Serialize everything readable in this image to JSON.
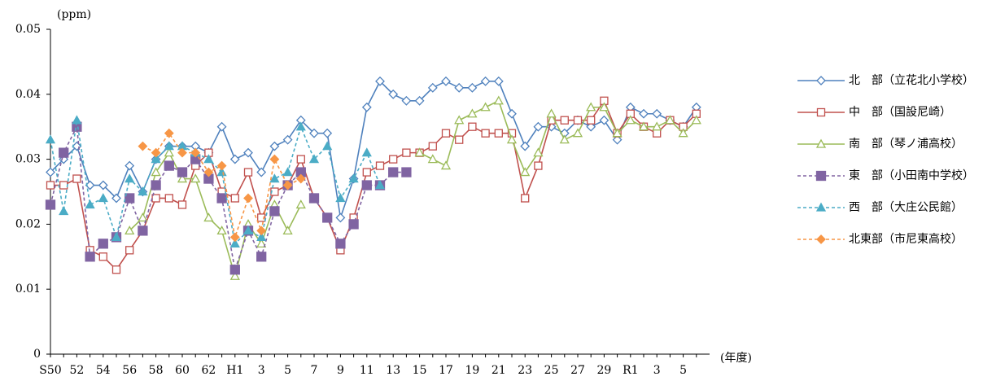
{
  "chart_data": {
    "type": "line",
    "y_unit": "(ppm)",
    "x_unit": "(年度)",
    "categories": [
      "S50",
      null,
      "52",
      null,
      "54",
      null,
      "56",
      null,
      "58",
      null,
      "60",
      null,
      "62",
      null,
      "H1",
      null,
      "3",
      null,
      "5",
      null,
      "7",
      null,
      "9",
      null,
      "11",
      null,
      "13",
      null,
      "15",
      null,
      "17",
      null,
      "19",
      null,
      "21",
      null,
      "23",
      null,
      "25",
      null,
      "27",
      null,
      "29",
      null,
      "R1",
      null,
      "3",
      null,
      "5",
      null
    ],
    "ylim": [
      0,
      0.05
    ],
    "yticks": [
      0,
      0.01,
      0.02,
      0.03,
      0.04,
      0.05
    ],
    "series": [
      {
        "name": "北　部（立花北小学校）",
        "color": "#4f81bd",
        "marker": "diamond",
        "filled": false,
        "dashed": false,
        "values": [
          0.028,
          0.03,
          0.032,
          0.026,
          0.026,
          0.024,
          0.029,
          0.025,
          0.03,
          0.032,
          0.032,
          0.032,
          0.031,
          0.035,
          0.03,
          0.031,
          0.028,
          0.032,
          0.033,
          0.036,
          0.034,
          0.034,
          0.021,
          0.027,
          0.038,
          0.042,
          0.04,
          0.039,
          0.039,
          0.041,
          0.042,
          0.041,
          0.041,
          0.042,
          0.042,
          0.037,
          0.032,
          0.035,
          0.035,
          0.034,
          0.036,
          0.035,
          0.036,
          0.033,
          0.038,
          0.037,
          0.037,
          0.036,
          0.035,
          0.038
        ]
      },
      {
        "name": "中　部（国設尼崎）",
        "color": "#c0504d",
        "marker": "square",
        "filled": false,
        "dashed": false,
        "values": [
          0.026,
          0.026,
          0.027,
          0.016,
          0.015,
          0.013,
          0.016,
          0.019,
          0.024,
          0.024,
          0.023,
          0.029,
          0.031,
          0.025,
          0.024,
          0.028,
          0.021,
          0.025,
          0.026,
          0.03,
          0.024,
          0.021,
          0.016,
          0.021,
          0.028,
          0.029,
          0.03,
          0.031,
          0.031,
          0.032,
          0.034,
          0.033,
          0.035,
          0.034,
          0.034,
          0.034,
          0.024,
          0.029,
          0.036,
          0.036,
          0.036,
          0.036,
          0.039,
          0.034,
          0.037,
          0.035,
          0.034,
          0.036,
          0.035,
          0.037
        ]
      },
      {
        "name": "南　部（琴ノ浦高校）",
        "color": "#9bbb59",
        "marker": "triangle",
        "filled": false,
        "dashed": false,
        "values": [
          null,
          null,
          null,
          null,
          null,
          null,
          0.019,
          0.021,
          0.028,
          0.031,
          0.027,
          0.027,
          0.021,
          0.019,
          0.012,
          0.02,
          0.017,
          0.023,
          0.019,
          0.023,
          null,
          null,
          null,
          null,
          null,
          null,
          null,
          null,
          0.031,
          0.03,
          0.029,
          0.036,
          0.037,
          0.038,
          0.039,
          0.033,
          0.028,
          0.031,
          0.037,
          0.033,
          0.034,
          0.038,
          0.038,
          0.034,
          0.036,
          0.035,
          0.035,
          0.036,
          0.034,
          0.036
        ]
      },
      {
        "name": "東　部（小田南中学校）",
        "color": "#8064a2",
        "marker": "square",
        "filled": true,
        "dashed": true,
        "values": [
          0.023,
          0.031,
          0.035,
          0.015,
          0.017,
          0.018,
          0.024,
          0.019,
          0.026,
          0.029,
          0.028,
          0.03,
          0.027,
          0.024,
          0.013,
          0.019,
          0.015,
          0.022,
          0.026,
          0.028,
          0.024,
          0.021,
          0.017,
          0.02,
          0.026,
          0.026,
          0.028,
          0.028,
          null,
          null,
          null,
          null,
          null,
          null,
          null,
          null,
          null,
          null,
          null,
          null,
          null,
          null,
          null,
          null,
          null,
          null,
          null,
          null,
          null,
          null
        ]
      },
      {
        "name": "西　部（大庄公民館）",
        "color": "#4bacc6",
        "marker": "triangle",
        "filled": true,
        "dashed": true,
        "values": [
          0.033,
          0.022,
          0.036,
          0.023,
          0.024,
          0.018,
          0.027,
          0.025,
          0.03,
          0.032,
          0.032,
          0.031,
          0.03,
          0.028,
          0.017,
          0.019,
          0.018,
          0.027,
          0.028,
          0.035,
          0.03,
          0.032,
          0.024,
          0.027,
          0.031,
          0.026,
          null,
          null,
          null,
          null,
          null,
          null,
          null,
          null,
          null,
          null,
          null,
          null,
          null,
          null,
          null,
          null,
          null,
          null,
          null,
          null,
          null,
          null,
          null,
          null
        ]
      },
      {
        "name": "北東部（市尼東高校）",
        "color": "#f79646",
        "marker": "diamond",
        "filled": true,
        "dashed": true,
        "values": [
          null,
          null,
          null,
          null,
          null,
          null,
          null,
          0.032,
          0.031,
          0.034,
          0.031,
          0.031,
          0.028,
          0.029,
          0.018,
          0.024,
          0.019,
          0.03,
          0.026,
          0.027,
          null,
          null,
          null,
          null,
          null,
          null,
          null,
          null,
          null,
          null,
          null,
          null,
          null,
          null,
          null,
          null,
          null,
          null,
          null,
          null,
          null,
          null,
          null,
          null,
          null,
          null,
          null,
          null,
          null,
          null
        ]
      }
    ]
  }
}
